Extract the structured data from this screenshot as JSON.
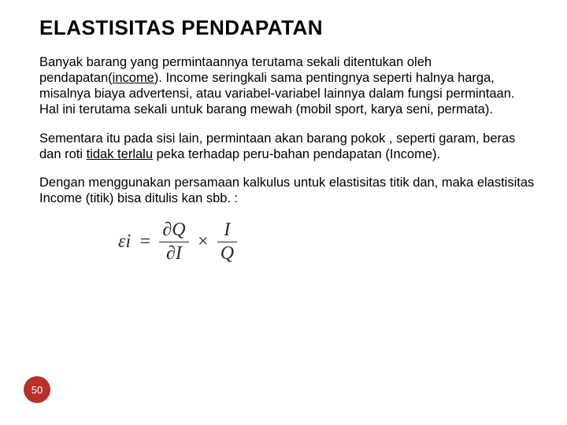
{
  "title": "ELASTISITAS PENDAPATAN",
  "para1_a": "Banyak barang yang permintaannya terutama sekali ditentukan oleh pendapatan(",
  "para1_u": "income",
  "para1_b": "). Income seringkali sama pentingnya seperti halnya harga, misalnya  biaya  advertensi, atau variabel-variabel lainnya dalam fungsi permintaan. Hal ini terutama sekali untuk barang mewah (mobil sport, karya seni, permata).",
  "para2_a": "Sementara itu pada sisi lain, permintaan akan barang pokok , seperti garam, beras dan roti ",
  "para2_u": "tidak terlalu",
  "para2_b": " peka terhadap peru-bahan pendapatan (Income).",
  "para3": "Dengan menggunakan persamaan kalkulus untuk elastisitas titik dan, maka elastisitas Income (titik) bisa ditulis kan sbb. :",
  "formula": {
    "lhs": "εi",
    "eq": "=",
    "f1_num_a": "∂",
    "f1_num_b": "Q",
    "f1_den_a": "∂",
    "f1_den_b": "I",
    "times": "×",
    "f2_num": "I",
    "f2_den": "Q"
  },
  "page_number": "50",
  "colors": {
    "text": "#000000",
    "formula_text": "#2a2a2a",
    "badge_bg": "#b83028",
    "badge_text": "#ffffff",
    "background": "#ffffff"
  }
}
